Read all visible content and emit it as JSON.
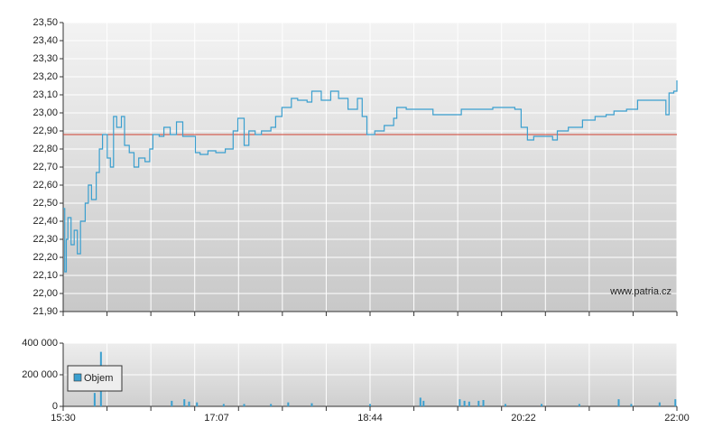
{
  "chart_data": [
    {
      "type": "line",
      "step": true,
      "color": "#3a9fcf",
      "x": [
        930,
        931,
        932,
        933,
        935,
        937,
        939,
        941,
        944,
        946,
        948,
        951,
        953,
        955,
        958,
        960,
        962,
        964,
        967,
        969,
        972,
        975,
        978,
        982,
        985,
        987,
        991,
        994,
        998,
        1002,
        1006,
        1010,
        1014,
        1017,
        1022,
        1027,
        1033,
        1038,
        1041,
        1045,
        1048,
        1052,
        1056,
        1062,
        1065,
        1069,
        1075,
        1079,
        1085,
        1088,
        1094,
        1100,
        1105,
        1111,
        1117,
        1120,
        1123,
        1128,
        1134,
        1140,
        1142,
        1148,
        1157,
        1165,
        1174,
        1183,
        1194,
        1203,
        1217,
        1221,
        1225,
        1229,
        1241,
        1244,
        1251,
        1260,
        1268,
        1275,
        1280,
        1288,
        1295,
        1303,
        1310,
        1313,
        1315,
        1318,
        1320
      ],
      "values": [
        22.47,
        22.12,
        22.3,
        22.42,
        22.27,
        22.35,
        22.22,
        22.4,
        22.5,
        22.6,
        22.52,
        22.67,
        22.8,
        22.88,
        22.75,
        22.7,
        22.98,
        22.92,
        22.98,
        22.82,
        22.78,
        22.7,
        22.75,
        22.73,
        22.8,
        22.88,
        22.87,
        22.92,
        22.88,
        22.95,
        22.87,
        22.87,
        22.78,
        22.77,
        22.79,
        22.78,
        22.8,
        22.9,
        22.97,
        22.82,
        22.9,
        22.88,
        22.9,
        22.92,
        22.98,
        23.03,
        23.08,
        23.07,
        23.06,
        23.12,
        23.07,
        23.12,
        23.08,
        23.02,
        23.08,
        22.98,
        22.88,
        22.9,
        22.93,
        22.97,
        23.03,
        23.02,
        23.02,
        22.99,
        22.99,
        23.02,
        23.02,
        23.03,
        23.02,
        22.92,
        22.85,
        22.87,
        22.85,
        22.9,
        22.92,
        22.96,
        22.98,
        22.99,
        23.01,
        23.02,
        23.07,
        23.07,
        23.07,
        22.99,
        23.11,
        23.12,
        23.18
      ],
      "xlim": [
        930,
        1320
      ],
      "x_divisions": 14,
      "ylim": [
        21.9,
        23.5
      ],
      "yticks": [
        {
          "value": 21.9,
          "label": "21,90"
        },
        {
          "value": 22.0,
          "label": "22,00"
        },
        {
          "value": 22.1,
          "label": "22,10"
        },
        {
          "value": 22.2,
          "label": "22,20"
        },
        {
          "value": 22.3,
          "label": "22,30"
        },
        {
          "value": 22.4,
          "label": "22,40"
        },
        {
          "value": 22.5,
          "label": "22,50"
        },
        {
          "value": 22.6,
          "label": "22,60"
        },
        {
          "value": 22.7,
          "label": "22,70"
        },
        {
          "value": 22.8,
          "label": "22,80"
        },
        {
          "value": 22.9,
          "label": "22,90"
        },
        {
          "value": 23.0,
          "label": "23,00"
        },
        {
          "value": 23.1,
          "label": "23,10"
        },
        {
          "value": 23.2,
          "label": "23,20"
        },
        {
          "value": 23.3,
          "label": "23,30"
        },
        {
          "value": 23.4,
          "label": "23,40"
        },
        {
          "value": 23.5,
          "label": "23,50"
        }
      ],
      "reference_line": {
        "value": 22.88,
        "color": "#d04030"
      },
      "annotation": "www.patria.cz",
      "grid": true
    },
    {
      "type": "bar",
      "x": [
        950,
        954,
        999,
        1007,
        1010,
        1015,
        1032,
        1045,
        1062,
        1073,
        1088,
        1125,
        1157,
        1159,
        1182,
        1185,
        1188,
        1194,
        1197,
        1211,
        1234,
        1258,
        1283,
        1291,
        1309,
        1319
      ],
      "series": [
        {
          "name": "Objem",
          "color": "#3a9fcf",
          "values": [
            85000,
            345000,
            35000,
            45000,
            30000,
            25000,
            15000,
            15000,
            15000,
            25000,
            20000,
            15000,
            55000,
            35000,
            45000,
            35000,
            30000,
            35000,
            40000,
            15000,
            15000,
            15000,
            45000,
            15000,
            25000,
            45000
          ]
        }
      ],
      "xlim": [
        930,
        1320
      ],
      "x_divisions": 14,
      "xticks": [
        {
          "value": 930,
          "label": "15:30"
        },
        {
          "value": 1027.5,
          "label": "17:07"
        },
        {
          "value": 1125,
          "label": "18:44"
        },
        {
          "value": 1222.5,
          "label": "20:22"
        },
        {
          "value": 1320,
          "label": "22:00"
        }
      ],
      "ylim": [
        0,
        400000
      ],
      "yticks": [
        0,
        {
          "value": 200000,
          "label": "200 000"
        },
        {
          "value": 400000,
          "label": "400 000"
        }
      ],
      "legend": "upper left",
      "grid": true
    }
  ]
}
